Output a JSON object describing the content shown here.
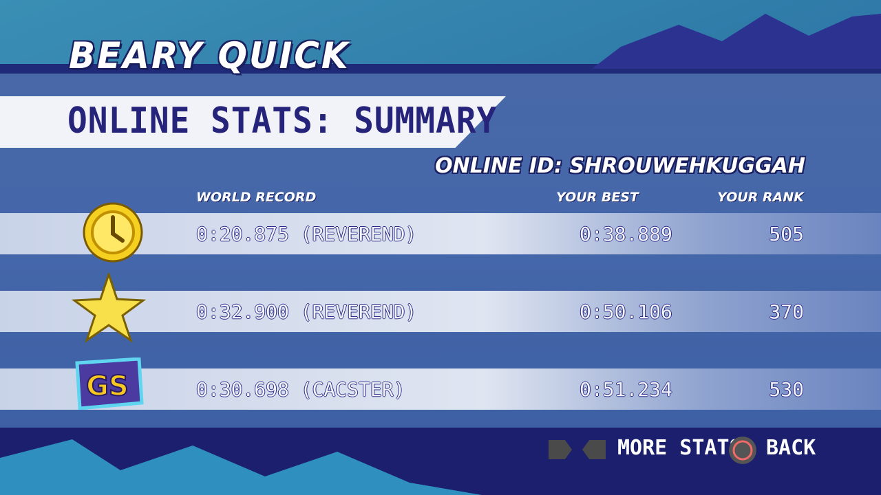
{
  "game_title": "BEARY QUICK",
  "screen_title": "ONLINE STATS: SUMMARY",
  "online_id": "ONLINE ID: SHROUWEHKUGGAH",
  "columns": {
    "world_record": "WORLD RECORD",
    "your_best": "YOUR BEST",
    "your_rank": "YOUR RANK"
  },
  "rows": [
    {
      "icon": "clock-icon",
      "world_record": "0:20.875 (REVEREND)",
      "your_best": "0:38.889",
      "your_rank": "505"
    },
    {
      "icon": "star-icon",
      "world_record": "0:32.900 (REVEREND)",
      "your_best": "0:50.106",
      "your_rank": "370"
    },
    {
      "icon": "gs-badge-icon",
      "world_record": "0:30.698 (CACSTER)",
      "your_best": "0:51.234",
      "your_rank": "530"
    }
  ],
  "footer": {
    "more_stats": "MORE STATS",
    "back": "BACK",
    "more_stats_buttons": "R1-L1-icons",
    "back_button": "circle-button-icon"
  },
  "colors": {
    "navy": "#25237a",
    "panel": "#4467aa",
    "gold": "#f5d020"
  }
}
